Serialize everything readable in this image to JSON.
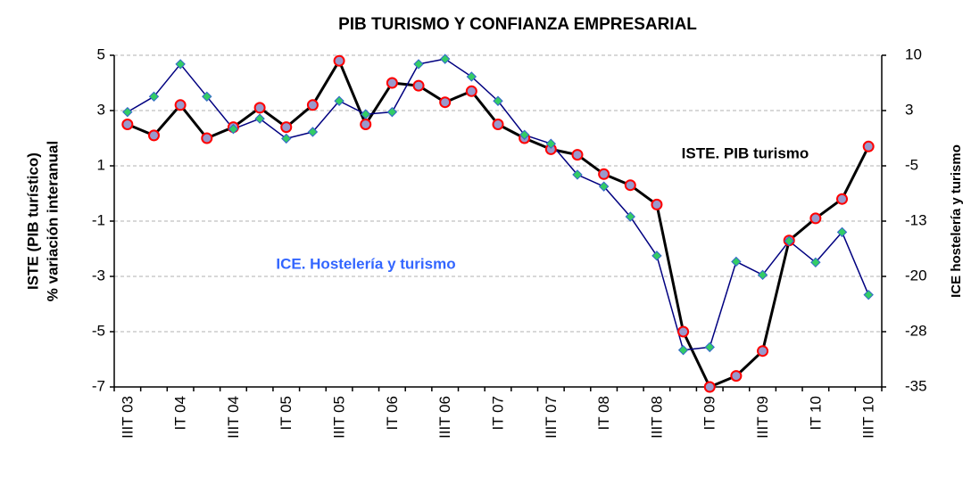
{
  "chart_data": {
    "type": "line",
    "title": "PIB TURISMO Y CONFIANZA  EMPRESARIAL",
    "ylabel": [
      "ISTE (PIB turístico)",
      "% variación interanual"
    ],
    "y2label": "ICE hostelería y turismo",
    "annotations": [
      {
        "text": "ISTE. PIB turismo",
        "color": "#000000"
      },
      {
        "text": "ICE. Hostelería y turismo",
        "color": "#3366ff"
      }
    ],
    "categories": [
      "IIIT 03",
      null,
      "IT 04",
      null,
      "IIIT 04",
      null,
      "IT 05",
      null,
      "IIIT 05",
      null,
      "IT 06",
      null,
      "IIIT 06",
      null,
      "IT 07",
      null,
      "IIIT 07",
      null,
      "IT 08",
      null,
      "IIIT 08",
      null,
      "IT 09",
      null,
      "IIIT 09",
      null,
      "IT 10",
      null,
      "IIIT 10"
    ],
    "series": [
      {
        "name": "ISTE. PIB turismo",
        "color": "#000000",
        "values": [
          2.5,
          2.1,
          3.2,
          2.0,
          2.4,
          3.1,
          2.4,
          3.2,
          4.8,
          2.5,
          4.0,
          3.9,
          3.3,
          3.7,
          2.5,
          2.0,
          1.6,
          1.4,
          0.7,
          0.3,
          -0.4,
          -5.0,
          -7.0,
          -6.6,
          -5.7,
          -1.7,
          -0.9,
          -0.2,
          1.7
        ]
      },
      {
        "name": "ICE. Hostelería y turismo",
        "color": "#000080",
        "axis": "y2",
        "values": [
          2.3,
          4.4,
          8.8,
          4.4,
          0.0,
          1.4,
          -1.3,
          -0.4,
          3.8,
          2.0,
          2.3,
          8.8,
          9.5,
          7.1,
          3.8,
          -0.8,
          -2.0,
          -6.2,
          -7.8,
          -11.9,
          -17.2,
          -30.0,
          -29.6,
          -18.0,
          -19.8,
          -15.2,
          -18.1,
          -14.0,
          -22.5
        ]
      }
    ],
    "ylim": [
      -7,
      5
    ],
    "yticks": [
      -7,
      -5,
      -3,
      -1,
      1,
      3,
      5
    ],
    "y2lim": [
      -35,
      10
    ],
    "y2ticks": [
      -35,
      {
        "value": -27.5,
        "label": "-28"
      },
      -20,
      {
        "value": -12.5,
        "label": "-13"
      },
      -5,
      {
        "value": 2.5,
        "label": "3"
      },
      10
    ],
    "grid": true
  }
}
